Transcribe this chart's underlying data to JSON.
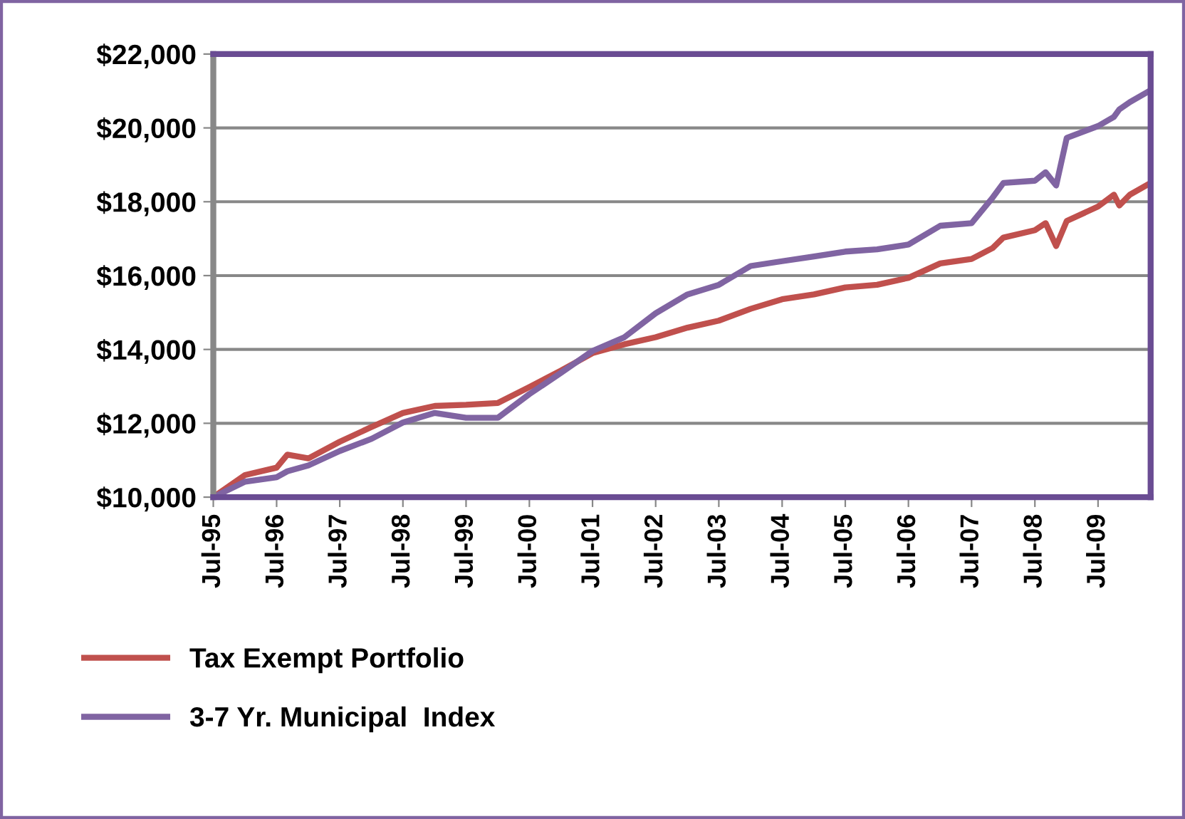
{
  "chart_data": {
    "type": "line",
    "x": [
      "1995-07",
      "1996-01",
      "1996-07",
      "1996-09",
      "1997-01",
      "1997-07",
      "1998-01",
      "1998-07",
      "1999-01",
      "1999-07",
      "2000-01",
      "2000-07",
      "2001-01",
      "2001-07",
      "2002-01",
      "2002-07",
      "2003-01",
      "2003-07",
      "2004-01",
      "2004-07",
      "2005-01",
      "2005-07",
      "2006-01",
      "2006-07",
      "2007-01",
      "2007-07",
      "2007-11",
      "2008-01",
      "2008-07",
      "2008-09",
      "2008-11",
      "2009-01",
      "2009-07",
      "2009-10",
      "2009-11",
      "2010-01",
      "2010-05"
    ],
    "series": [
      {
        "name": "Tax Exempt Portfolio",
        "color": "#c0504d",
        "values": [
          10000,
          10600,
          10800,
          11150,
          11050,
          11500,
          11900,
          12280,
          12470,
          12500,
          12550,
          12980,
          13430,
          13900,
          14140,
          14330,
          14590,
          14780,
          15100,
          15360,
          15490,
          15680,
          15750,
          15940,
          16330,
          16450,
          16750,
          17030,
          17230,
          17420,
          16800,
          17480,
          17870,
          18190,
          17900,
          18190,
          18510
        ]
      },
      {
        "name": "3-7 Yr. Municipal  Index",
        "color": "#8064a2",
        "values": [
          10000,
          10420,
          10540,
          10700,
          10860,
          11250,
          11580,
          12020,
          12280,
          12150,
          12150,
          12790,
          13370,
          13960,
          14330,
          14980,
          15490,
          15750,
          16260,
          16390,
          16520,
          16650,
          16710,
          16840,
          17350,
          17420,
          18120,
          18510,
          18570,
          18800,
          18440,
          19730,
          20050,
          20300,
          20500,
          20700,
          21020
        ]
      }
    ],
    "xlim": [
      "1995-07",
      "2010-05"
    ],
    "xticks": [
      {
        "value": "1995-07",
        "label": "Jul-95"
      },
      {
        "value": "1996-07",
        "label": "Jul-96"
      },
      {
        "value": "1997-07",
        "label": "Jul-97"
      },
      {
        "value": "1998-07",
        "label": "Jul-98"
      },
      {
        "value": "1999-07",
        "label": "Jul-99"
      },
      {
        "value": "2000-07",
        "label": "Jul-00"
      },
      {
        "value": "2001-07",
        "label": "Jul-01"
      },
      {
        "value": "2002-07",
        "label": "Jul-02"
      },
      {
        "value": "2003-07",
        "label": "Jul-03"
      },
      {
        "value": "2004-07",
        "label": "Jul-04"
      },
      {
        "value": "2005-07",
        "label": "Jul-05"
      },
      {
        "value": "2006-07",
        "label": "Jul-06"
      },
      {
        "value": "2007-07",
        "label": "Jul-07"
      },
      {
        "value": "2008-07",
        "label": "Jul-08"
      },
      {
        "value": "2009-07",
        "label": "Jul-09"
      }
    ],
    "ylim": [
      10000,
      22000
    ],
    "yticks": [
      {
        "value": 10000,
        "label": "$10,000"
      },
      {
        "value": 12000,
        "label": "$12,000"
      },
      {
        "value": 14000,
        "label": "$14,000"
      },
      {
        "value": 16000,
        "label": "$16,000"
      },
      {
        "value": 18000,
        "label": "$18,000"
      },
      {
        "value": 20000,
        "label": "$20,000"
      },
      {
        "value": 22000,
        "label": "$22,000"
      }
    ],
    "grid": "y",
    "legend": "bottom",
    "marker": "none",
    "line_style": "solid"
  }
}
